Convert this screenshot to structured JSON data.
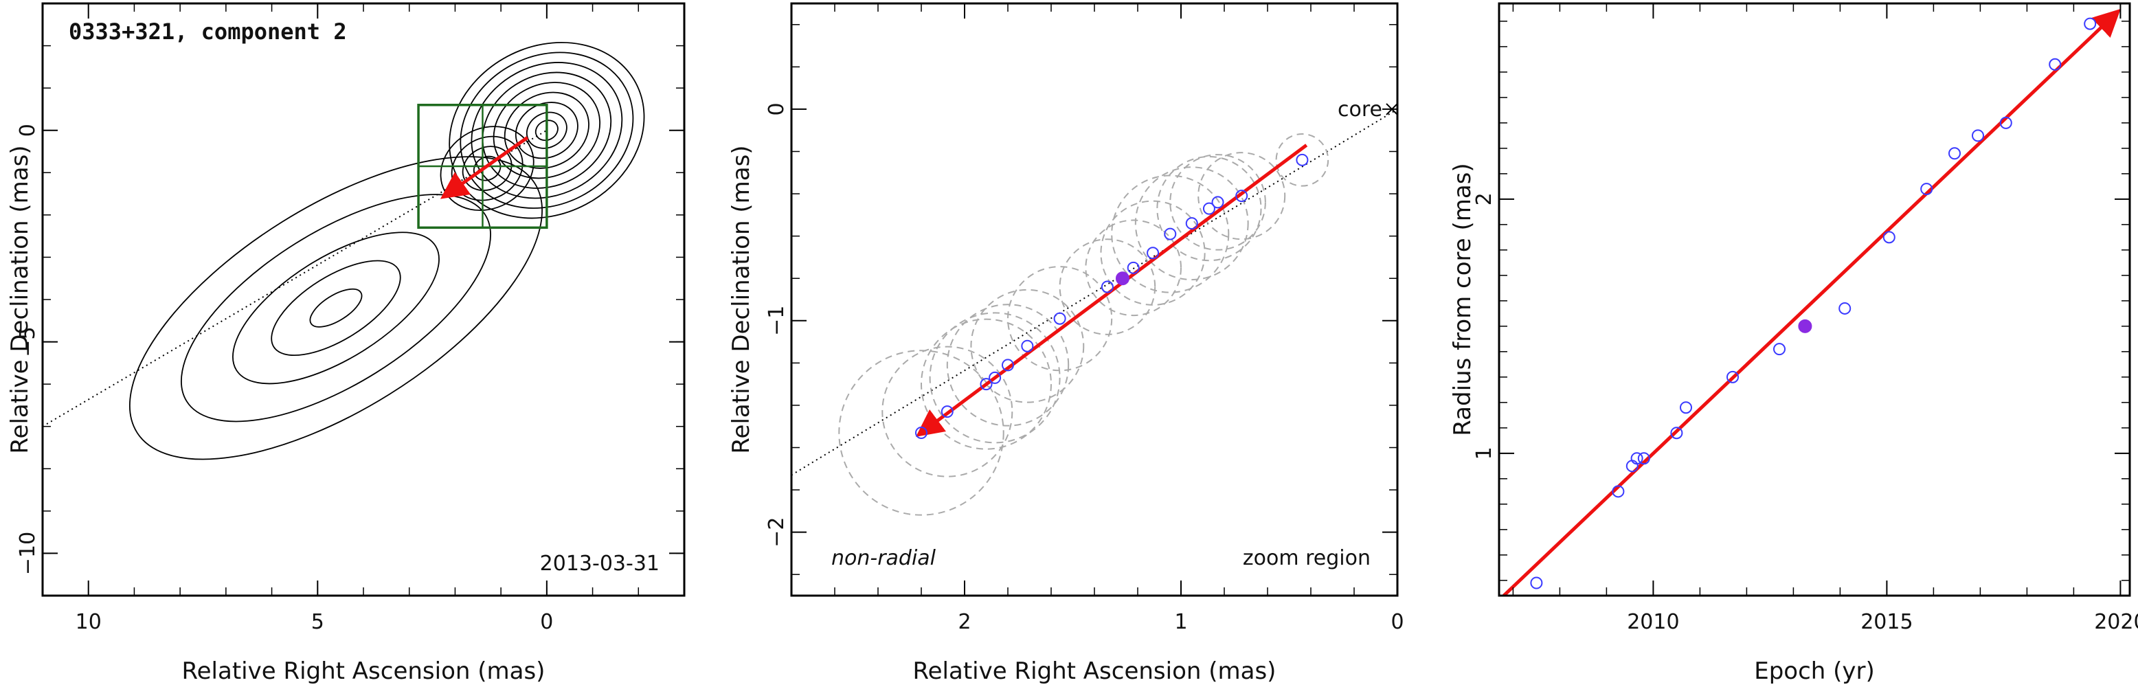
{
  "chart_data": [
    {
      "type": "contour",
      "title": "0333+321, component 2",
      "date": "2013-03-31",
      "xlabel": "Relative Right Ascension (mas)",
      "ylabel": "Relative Declination (mas)",
      "xlim": [
        11,
        -3
      ],
      "ylim": [
        -11,
        3
      ],
      "xticks": [
        10,
        5,
        0
      ],
      "yticks": [
        0,
        -5,
        -10
      ],
      "jet_contours": [
        {
          "cx": 0.0,
          "cy": 0.0,
          "rx": [
            0.25,
            0.45,
            0.7,
            0.95,
            1.2,
            1.45,
            1.7,
            1.95,
            2.2
          ]
        },
        {
          "cx": 1.3,
          "cy": -0.9,
          "rx": [
            0.3,
            0.55,
            0.8,
            1.05
          ]
        },
        {
          "cx": 4.6,
          "cy": -4.2,
          "rx": [
            0.4,
            1.0,
            1.6,
            2.4,
            3.2
          ]
        }
      ],
      "zoom_box": {
        "x": [
          0.0,
          2.8
        ],
        "y": [
          -2.3,
          0.6
        ]
      },
      "reference_line": {
        "x": [
          11.0,
          0.0
        ],
        "y": [
          -7.0,
          0.0
        ]
      },
      "motion_vector": {
        "x": [
          0.42,
          2.2
        ],
        "y": [
          -0.17,
          -1.53
        ]
      },
      "colors": {
        "contour": "#000000",
        "box": "#1e6b1e",
        "vector": "#ee1111",
        "points": "#3a3aff"
      }
    },
    {
      "type": "scatter",
      "labels": {
        "corner_left": "non-radial",
        "corner_right": "zoom region",
        "core": "core"
      },
      "xlabel": "Relative Right Ascension (mas)",
      "ylabel": "Relative Declination (mas)",
      "xlim": [
        2.8,
        0.0
      ],
      "ylim": [
        -2.3,
        0.5
      ],
      "xticks": [
        2,
        1,
        0
      ],
      "yticks": [
        0,
        -1,
        -2
      ],
      "points": [
        {
          "x": 0.44,
          "y": -0.24
        },
        {
          "x": 0.72,
          "y": -0.41
        },
        {
          "x": 0.83,
          "y": -0.44
        },
        {
          "x": 0.87,
          "y": -0.47
        },
        {
          "x": 0.95,
          "y": -0.54
        },
        {
          "x": 1.05,
          "y": -0.59
        },
        {
          "x": 1.13,
          "y": -0.68
        },
        {
          "x": 1.22,
          "y": -0.75
        },
        {
          "x": 1.34,
          "y": -0.84
        },
        {
          "x": 1.56,
          "y": -0.99
        },
        {
          "x": 1.71,
          "y": -1.12
        },
        {
          "x": 1.8,
          "y": -1.21
        },
        {
          "x": 1.86,
          "y": -1.27
        },
        {
          "x": 1.9,
          "y": -1.3
        },
        {
          "x": 2.08,
          "y": -1.43
        },
        {
          "x": 2.2,
          "y": -1.53
        }
      ],
      "highlight_point": {
        "x": 1.27,
        "y": -0.8
      },
      "beam_circles": [
        {
          "x": 0.44,
          "y": -0.24,
          "r": 0.12
        },
        {
          "x": 0.72,
          "y": -0.41,
          "r": 0.2
        },
        {
          "x": 0.83,
          "y": -0.44,
          "r": 0.22
        },
        {
          "x": 0.87,
          "y": -0.47,
          "r": 0.24
        },
        {
          "x": 0.95,
          "y": -0.54,
          "r": 0.26
        },
        {
          "x": 1.05,
          "y": -0.59,
          "r": 0.27
        },
        {
          "x": 1.13,
          "y": -0.68,
          "r": 0.24
        },
        {
          "x": 1.22,
          "y": -0.75,
          "r": 0.22
        },
        {
          "x": 1.34,
          "y": -0.84,
          "r": 0.22
        },
        {
          "x": 1.56,
          "y": -0.99,
          "r": 0.24
        },
        {
          "x": 1.71,
          "y": -1.12,
          "r": 0.26
        },
        {
          "x": 1.8,
          "y": -1.21,
          "r": 0.28
        },
        {
          "x": 1.86,
          "y": -1.27,
          "r": 0.3
        },
        {
          "x": 1.9,
          "y": -1.3,
          "r": 0.3
        },
        {
          "x": 2.08,
          "y": -1.43,
          "r": 0.3
        },
        {
          "x": 2.2,
          "y": -1.53,
          "r": 0.38
        }
      ],
      "reference_line": {
        "x": [
          2.8,
          0.0
        ],
        "y": [
          -1.73,
          0.0
        ]
      },
      "core_marker": {
        "x": 0.0,
        "y": 0.0
      },
      "motion_vector": {
        "x": [
          0.42,
          2.2
        ],
        "y": [
          -0.17,
          -1.53
        ]
      },
      "colors": {
        "points": "#3a3aff",
        "highlight": "#8a2be2",
        "vector": "#ee1111",
        "beams": "#aaaaaa"
      }
    },
    {
      "type": "scatter",
      "xlabel": "Epoch (yr)",
      "ylabel": "Radius from core (mas)",
      "xlim": [
        2006.7,
        2020.2
      ],
      "ylim": [
        0.44,
        2.77
      ],
      "xticks": [
        2010,
        2015,
        2020
      ],
      "yticks": [
        1,
        2
      ],
      "points": [
        {
          "x": 2007.5,
          "y": 0.49
        },
        {
          "x": 2009.25,
          "y": 0.85
        },
        {
          "x": 2009.55,
          "y": 0.95
        },
        {
          "x": 2009.65,
          "y": 0.98
        },
        {
          "x": 2009.8,
          "y": 0.98
        },
        {
          "x": 2010.5,
          "y": 1.08
        },
        {
          "x": 2010.7,
          "y": 1.18
        },
        {
          "x": 2011.7,
          "y": 1.3
        },
        {
          "x": 2012.7,
          "y": 1.41
        },
        {
          "x": 2014.1,
          "y": 1.57
        },
        {
          "x": 2015.05,
          "y": 1.85
        },
        {
          "x": 2015.85,
          "y": 2.04
        },
        {
          "x": 2016.45,
          "y": 2.18
        },
        {
          "x": 2016.95,
          "y": 2.25
        },
        {
          "x": 2017.55,
          "y": 2.3
        },
        {
          "x": 2018.6,
          "y": 2.53
        },
        {
          "x": 2019.35,
          "y": 2.69
        }
      ],
      "highlight_point": {
        "x": 2013.25,
        "y": 1.5
      },
      "fit_line": {
        "x": [
          2006.8,
          2019.9
        ],
        "y": [
          0.44,
          2.73
        ]
      },
      "colors": {
        "points": "#3a3aff",
        "highlight": "#8a2be2",
        "fit": "#ee1111"
      }
    }
  ]
}
